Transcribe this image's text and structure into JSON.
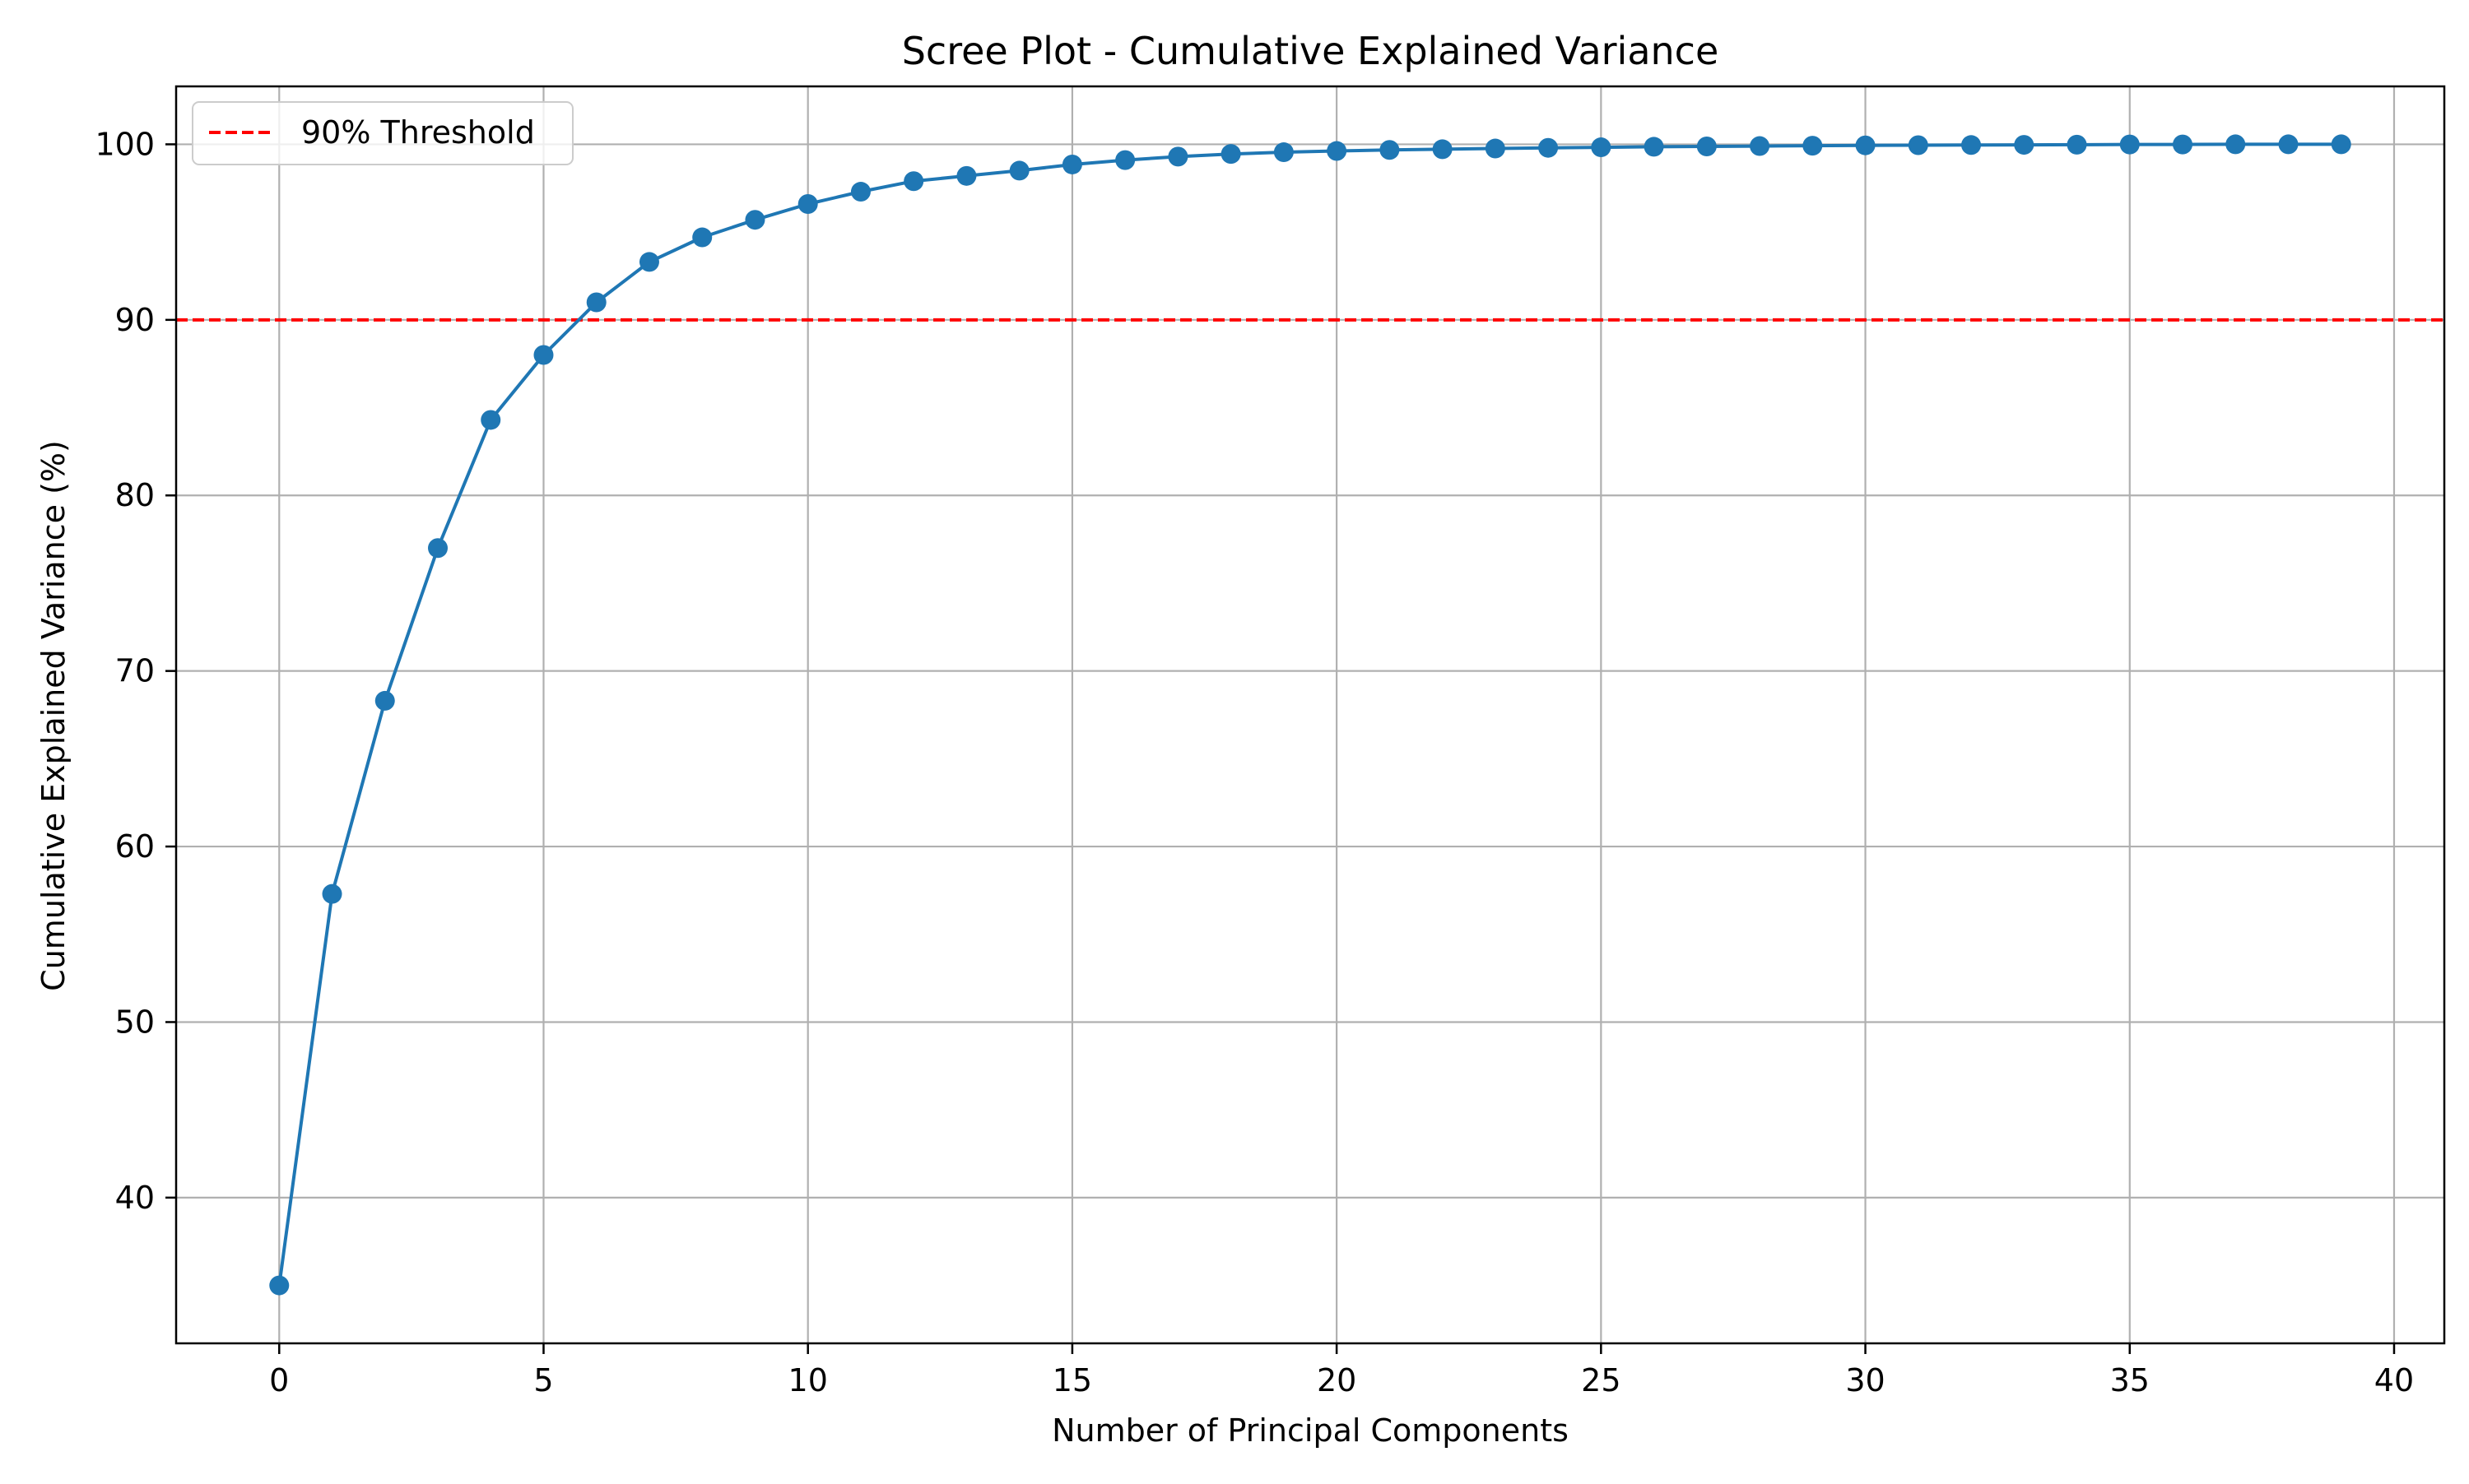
{
  "chart_data": {
    "type": "line",
    "title": "Scree Plot - Cumulative Explained Variance",
    "xlabel": "Number of Principal Components",
    "ylabel": "Cumulative Explained Variance (%)",
    "xlim": [
      -1.95,
      40.95
    ],
    "ylim": [
      31.7,
      103.3
    ],
    "xticks": [
      0,
      5,
      10,
      15,
      20,
      25,
      30,
      35,
      40
    ],
    "yticks": [
      40,
      50,
      60,
      70,
      80,
      90,
      100
    ],
    "grid": true,
    "legend_position": "top-left",
    "series": [
      {
        "color": "#1f77b4",
        "marker": "circle",
        "x": [
          0,
          1,
          2,
          3,
          4,
          5,
          6,
          7,
          8,
          9,
          10,
          11,
          12,
          13,
          14,
          15,
          16,
          17,
          18,
          19,
          20,
          21,
          22,
          23,
          24,
          25,
          26,
          27,
          28,
          29,
          30,
          31,
          32,
          33,
          34,
          35,
          36,
          37,
          38,
          39
        ],
        "values": [
          35.0,
          57.3,
          68.3,
          77.0,
          84.3,
          88.0,
          91.0,
          93.3,
          94.7,
          95.7,
          96.6,
          97.3,
          97.9,
          98.2,
          98.5,
          98.85,
          99.1,
          99.3,
          99.45,
          99.55,
          99.62,
          99.68,
          99.72,
          99.76,
          99.8,
          99.83,
          99.86,
          99.88,
          99.9,
          99.92,
          99.94,
          99.95,
          99.96,
          99.97,
          99.98,
          99.99,
          99.99,
          100.0,
          100.0,
          100.0
        ]
      }
    ],
    "reference_lines": [
      {
        "name": "90% Threshold",
        "orientation": "horizontal",
        "value": 90,
        "color": "#ff0000",
        "style": "dashed"
      }
    ]
  }
}
